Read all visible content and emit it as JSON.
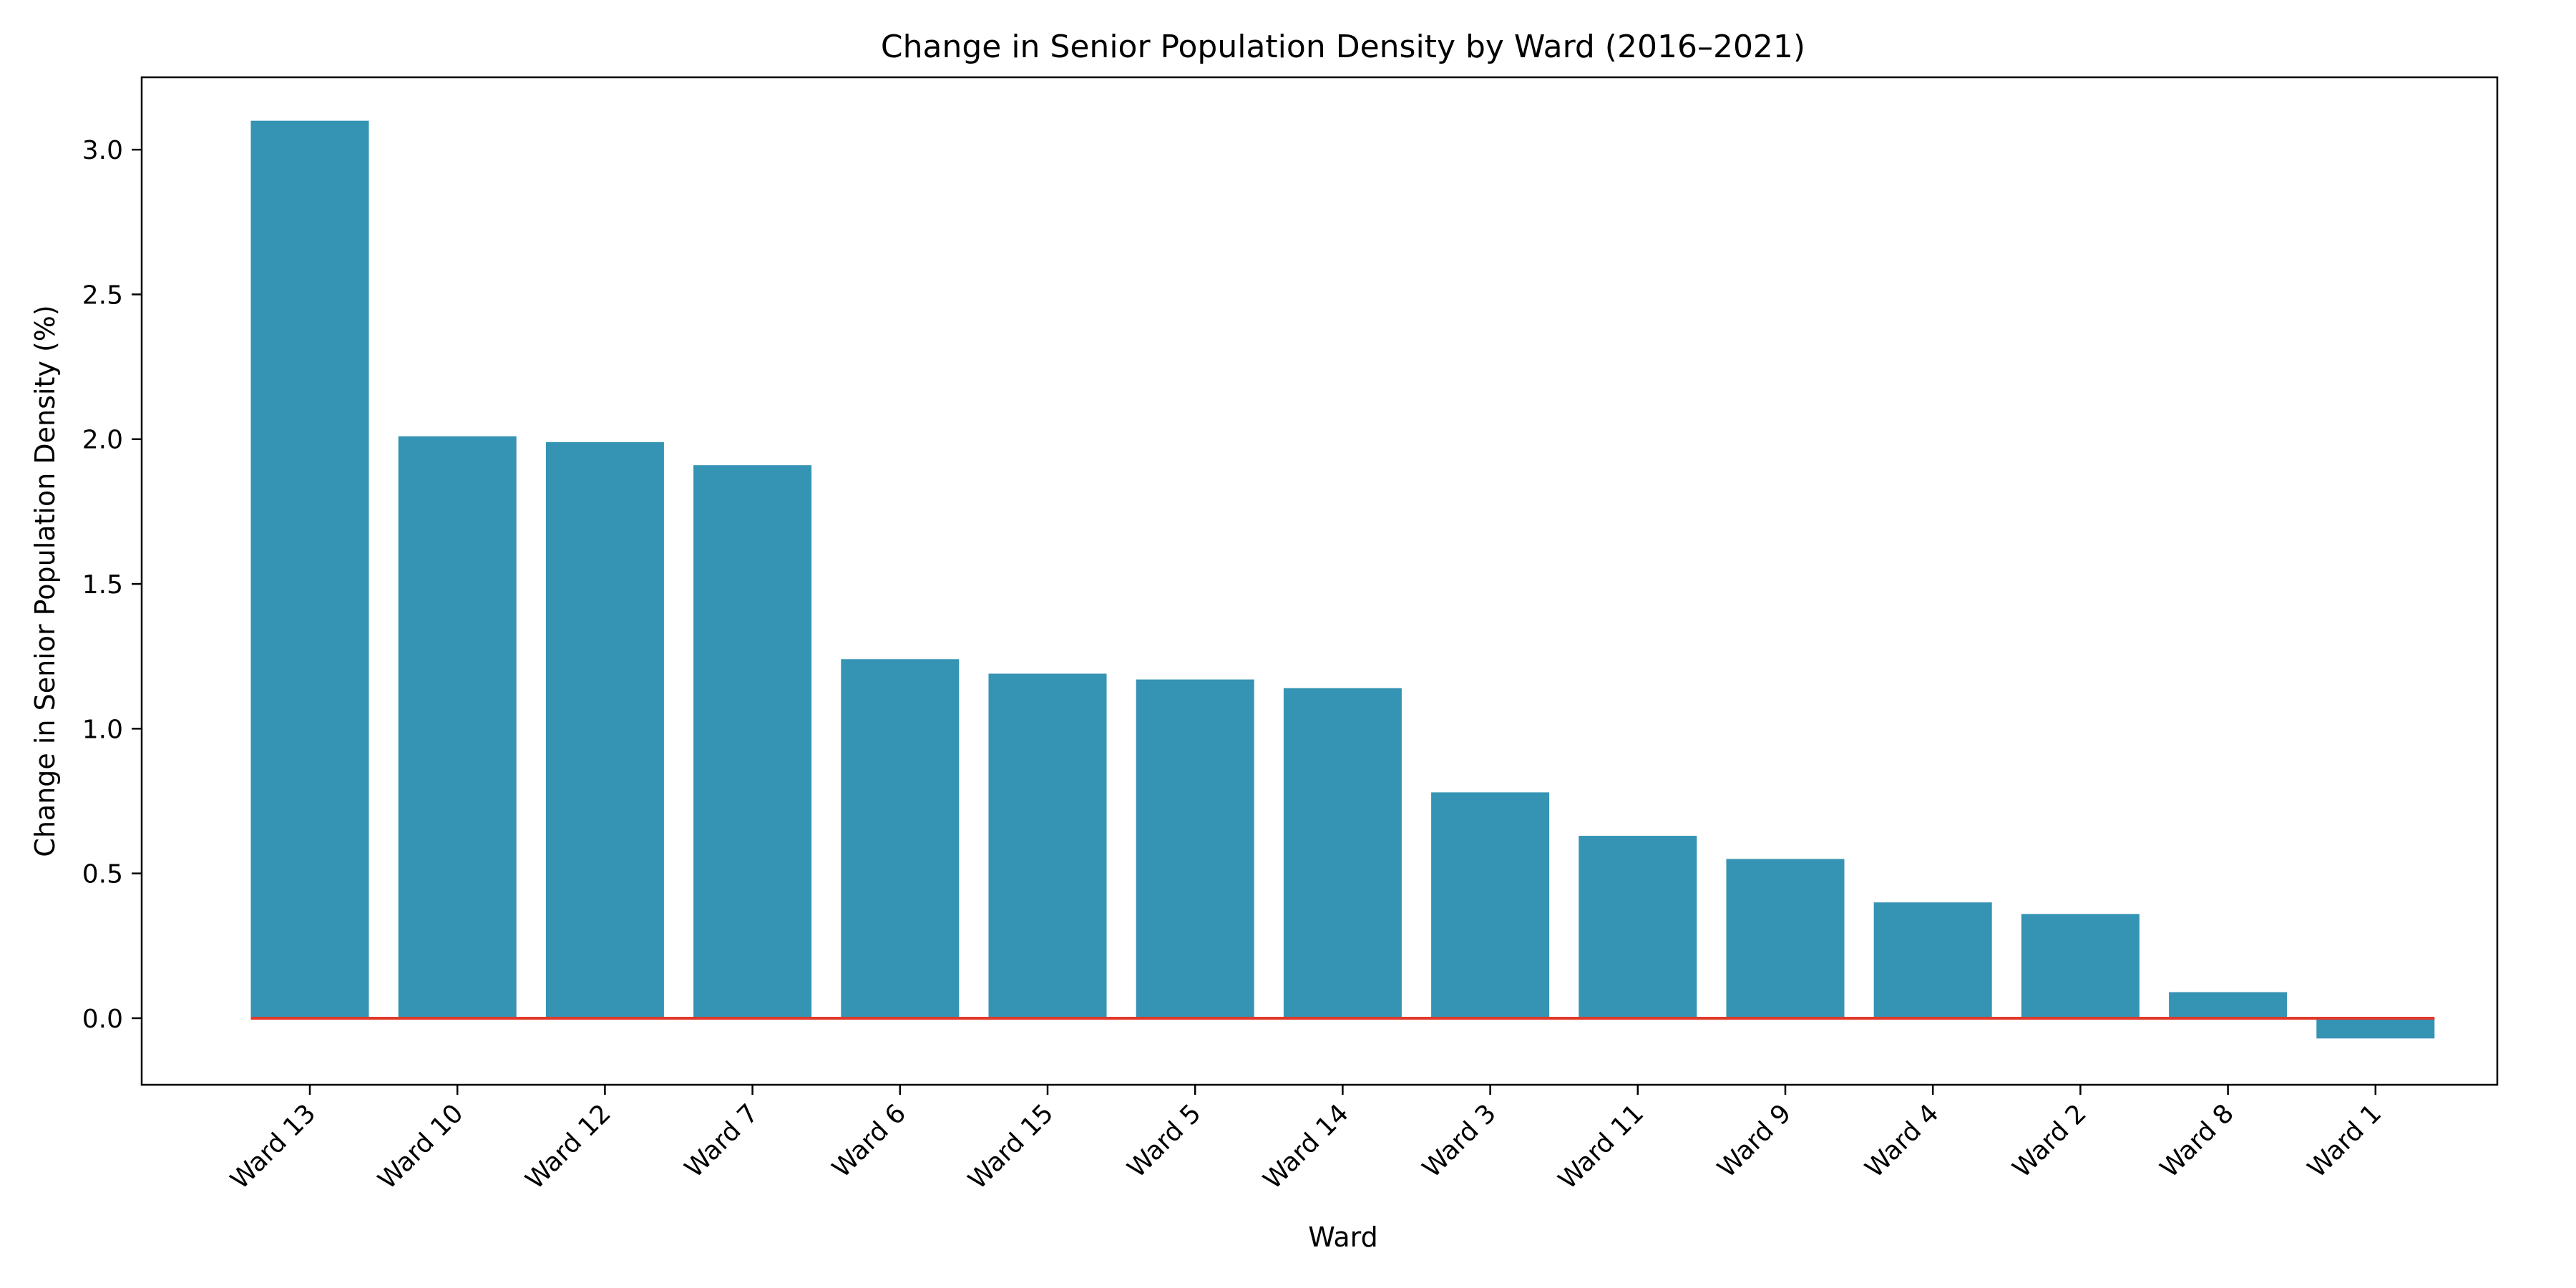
{
  "chart_data": {
    "type": "bar",
    "title": "Change in Senior Population Density by Ward (2016–2021)",
    "xlabel": "Ward",
    "ylabel": "Change in Senior Population Density (%)",
    "categories": [
      "Ward 13",
      "Ward 10",
      "Ward 12",
      "Ward 7",
      "Ward 6",
      "Ward 15",
      "Ward 5",
      "Ward 14",
      "Ward 3",
      "Ward 11",
      "Ward 9",
      "Ward 4",
      "Ward 2",
      "Ward 8",
      "Ward 1"
    ],
    "values": [
      3.1,
      2.01,
      1.99,
      1.91,
      1.24,
      1.19,
      1.17,
      1.14,
      0.78,
      0.63,
      0.55,
      0.4,
      0.36,
      0.09,
      -0.07
    ],
    "ylim": [
      -0.23,
      3.25
    ],
    "yticks": [
      0.0,
      0.5,
      1.0,
      1.5,
      2.0,
      2.5,
      3.0
    ],
    "ytick_labels": [
      "0.0",
      "0.5",
      "1.0",
      "1.5",
      "2.0",
      "2.5",
      "3.0"
    ],
    "reference_line": 0.0,
    "grid": false,
    "bar_color": "#3593b4",
    "reference_line_color": "#e0392b"
  }
}
